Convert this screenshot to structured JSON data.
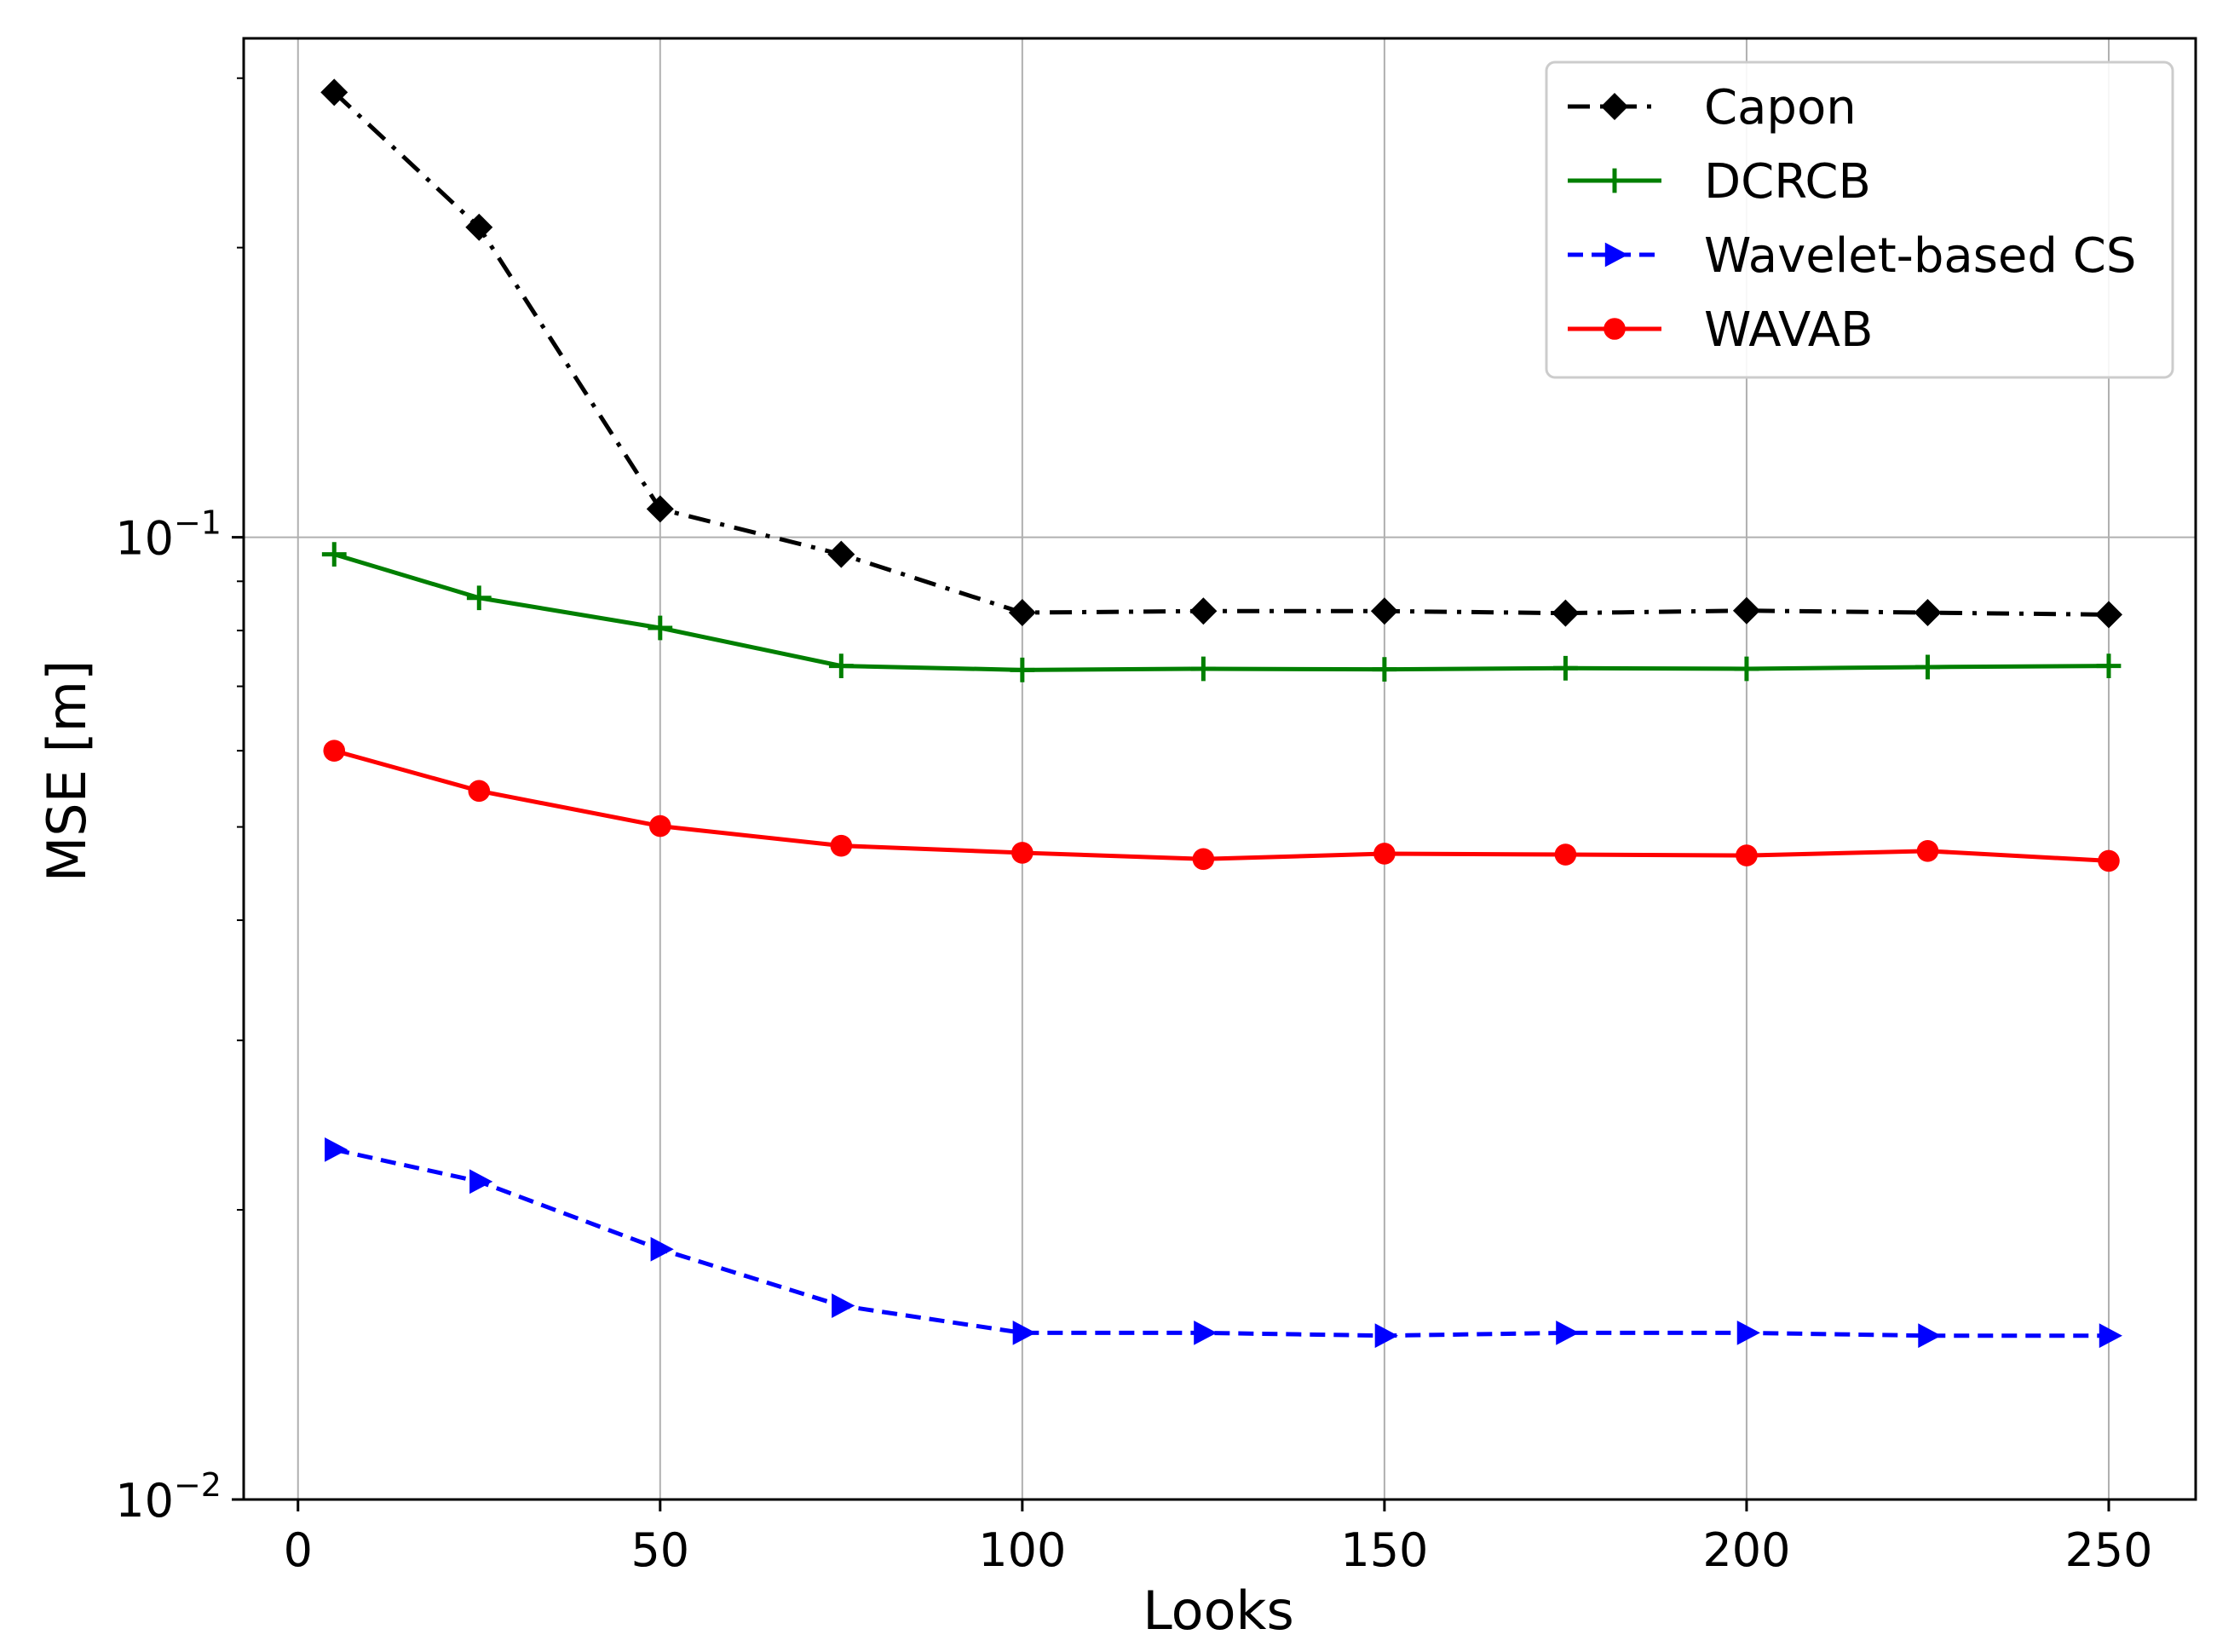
{
  "chart_data": {
    "type": "line",
    "title": "",
    "xlabel": "Looks",
    "ylabel": "MSE [m]",
    "xlim": [
      -7.5,
      262
    ],
    "ylim": [
      0.01,
      0.33
    ],
    "yscale": "log",
    "grid": true,
    "legend_position": "top-right",
    "x_ticks": [
      0,
      50,
      100,
      150,
      200,
      250
    ],
    "x_tick_labels": [
      "0",
      "50",
      "100",
      "150",
      "200",
      "250"
    ],
    "y_ticks": [
      {
        "value": 0.1,
        "base": "10",
        "exponent": "−1"
      },
      {
        "value": 0.01,
        "base": "10",
        "exponent": "−2"
      }
    ],
    "x": [
      5,
      25,
      50,
      75,
      100,
      125,
      150,
      175,
      200,
      225,
      250
    ],
    "series": [
      {
        "name": "Capon",
        "color": "#000000",
        "marker": "diamond",
        "line": "dashdot",
        "values": [
          0.29,
          0.21,
          0.107,
          0.096,
          0.0835,
          0.0838,
          0.0838,
          0.0834,
          0.0839,
          0.0835,
          0.0831
        ]
      },
      {
        "name": "DCRCB",
        "color": "#007f00",
        "marker": "plus",
        "line": "solid",
        "values": [
          0.096,
          0.0865,
          0.0805,
          0.0735,
          0.0728,
          0.073,
          0.0729,
          0.0731,
          0.073,
          0.0733,
          0.0735
        ]
      },
      {
        "name": "Wavelet-based CS",
        "color": "#0000ff",
        "marker": "triangle-right",
        "line": "dashed",
        "values": [
          0.0231,
          0.0214,
          0.0182,
          0.0159,
          0.0149,
          0.0149,
          0.0148,
          0.0149,
          0.0149,
          0.0148,
          0.0148
        ]
      },
      {
        "name": "WAVAB",
        "color": "#ff0000",
        "marker": "circle",
        "line": "solid",
        "values": [
          0.06,
          0.0545,
          0.0501,
          0.0478,
          0.047,
          0.0463,
          0.0469,
          0.0468,
          0.0467,
          0.0472,
          0.0461
        ]
      }
    ]
  }
}
